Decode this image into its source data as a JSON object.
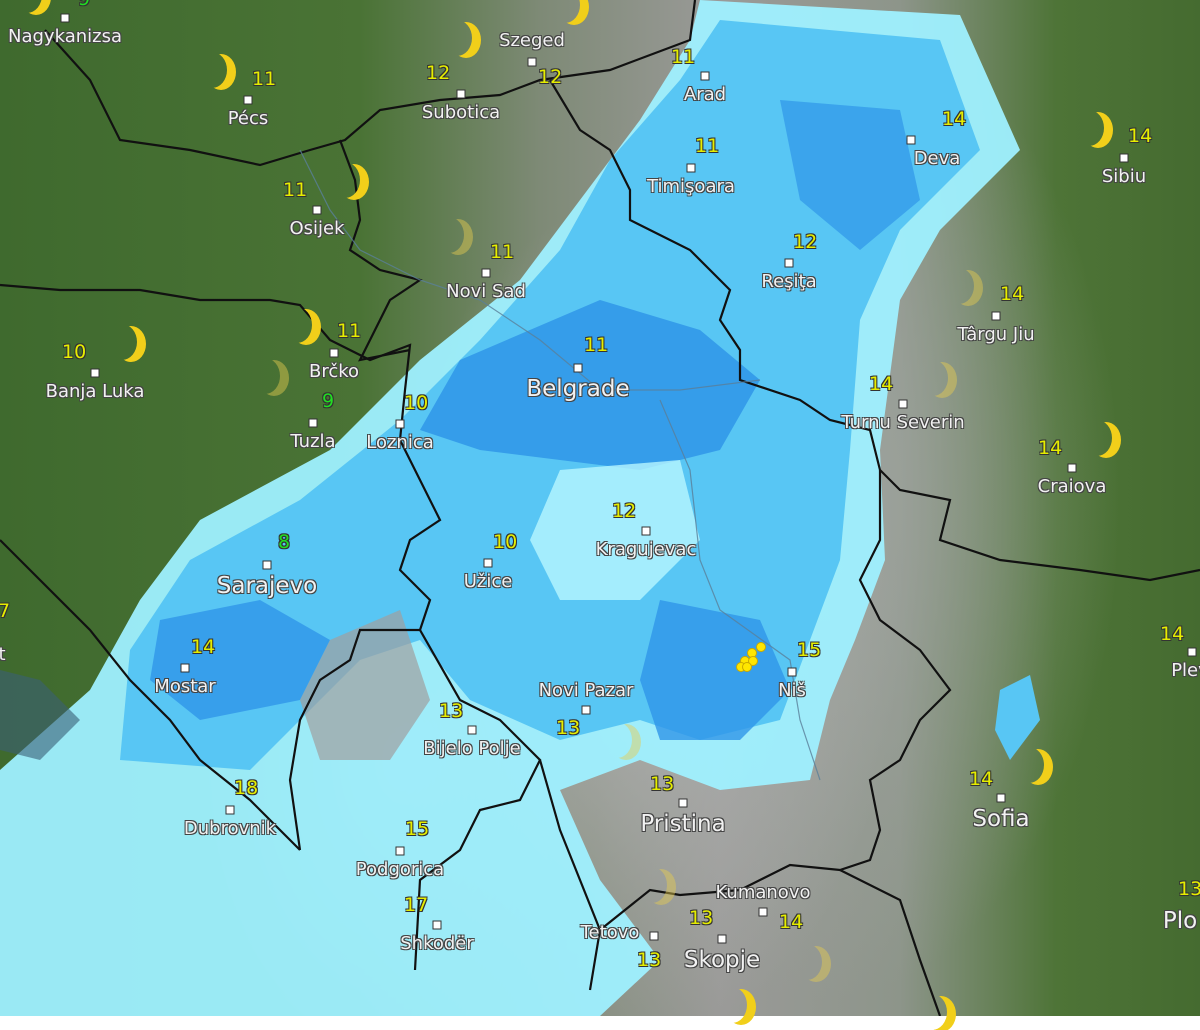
{
  "map": {
    "layer": "precipitation radar over satellite clouds",
    "colors": {
      "temp_default": "#e6ee00",
      "temp_cold": "#22dd22",
      "rain_light": "#9ff0ff",
      "rain_medium": "#55c8f5",
      "rain_heavy": "#2a8ee6",
      "land": "#4a7335",
      "clouds": "#a0a0a0",
      "lightning": "#ffe600"
    }
  },
  "cities": [
    {
      "name": "Nagykanizsa",
      "temp": "9",
      "cold": true
    },
    {
      "name": "Pécs",
      "temp": "11"
    },
    {
      "name": "Szeged",
      "temp": "12"
    },
    {
      "name": "Subotica",
      "temp": "12"
    },
    {
      "name": "Osijek",
      "temp": "11"
    },
    {
      "name": "Arad",
      "temp": "11"
    },
    {
      "name": "Deva",
      "temp": "14"
    },
    {
      "name": "Sibiu",
      "temp": "14"
    },
    {
      "name": "Timişoara",
      "temp": "11"
    },
    {
      "name": "Novi Sad",
      "temp": "11"
    },
    {
      "name": "Reşiţa",
      "temp": "12"
    },
    {
      "name": "Târgu Jiu",
      "temp": "14"
    },
    {
      "name": "Brčko",
      "temp": "11"
    },
    {
      "name": "Banja Luka",
      "temp": "10"
    },
    {
      "name": "Belgrade",
      "temp": "11",
      "big": true
    },
    {
      "name": "Turnu Severin",
      "temp": "14"
    },
    {
      "name": "Tuzla",
      "temp": "9",
      "cold": true
    },
    {
      "name": "Loznica",
      "temp": "10"
    },
    {
      "name": "Craiova",
      "temp": "14"
    },
    {
      "name": "Kragujevac",
      "temp": "12"
    },
    {
      "name": "Sarajevo",
      "temp": "8",
      "cold": true,
      "big": true
    },
    {
      "name": "Užice",
      "temp": "10"
    },
    {
      "name": "Mostar",
      "temp": "14"
    },
    {
      "name": "Plev",
      "temp": "14"
    },
    {
      "name": "Niš",
      "temp": "15"
    },
    {
      "name": "Novi Pazar",
      "temp": "13"
    },
    {
      "name": "Bijelo Polje",
      "temp": "13"
    },
    {
      "name": "Pristina",
      "temp": "13",
      "big": true
    },
    {
      "name": "Sofia",
      "temp": "14",
      "big": true
    },
    {
      "name": "Dubrovnik",
      "temp": "18"
    },
    {
      "name": "Podgorica",
      "temp": "15"
    },
    {
      "name": "Kumanovo",
      "temp": "14"
    },
    {
      "name": "Shkodër",
      "temp": "17"
    },
    {
      "name": "Tetovo",
      "temp": "13"
    },
    {
      "name": "Skopje",
      "temp": "13",
      "big": true
    },
    {
      "name": "Plo",
      "temp": "13",
      "big": true
    },
    {
      "name": "t",
      "temp": "7"
    }
  ],
  "icons": {
    "night": "moon-icon",
    "storm": "lightning-icon",
    "city": "city-marker-icon"
  }
}
